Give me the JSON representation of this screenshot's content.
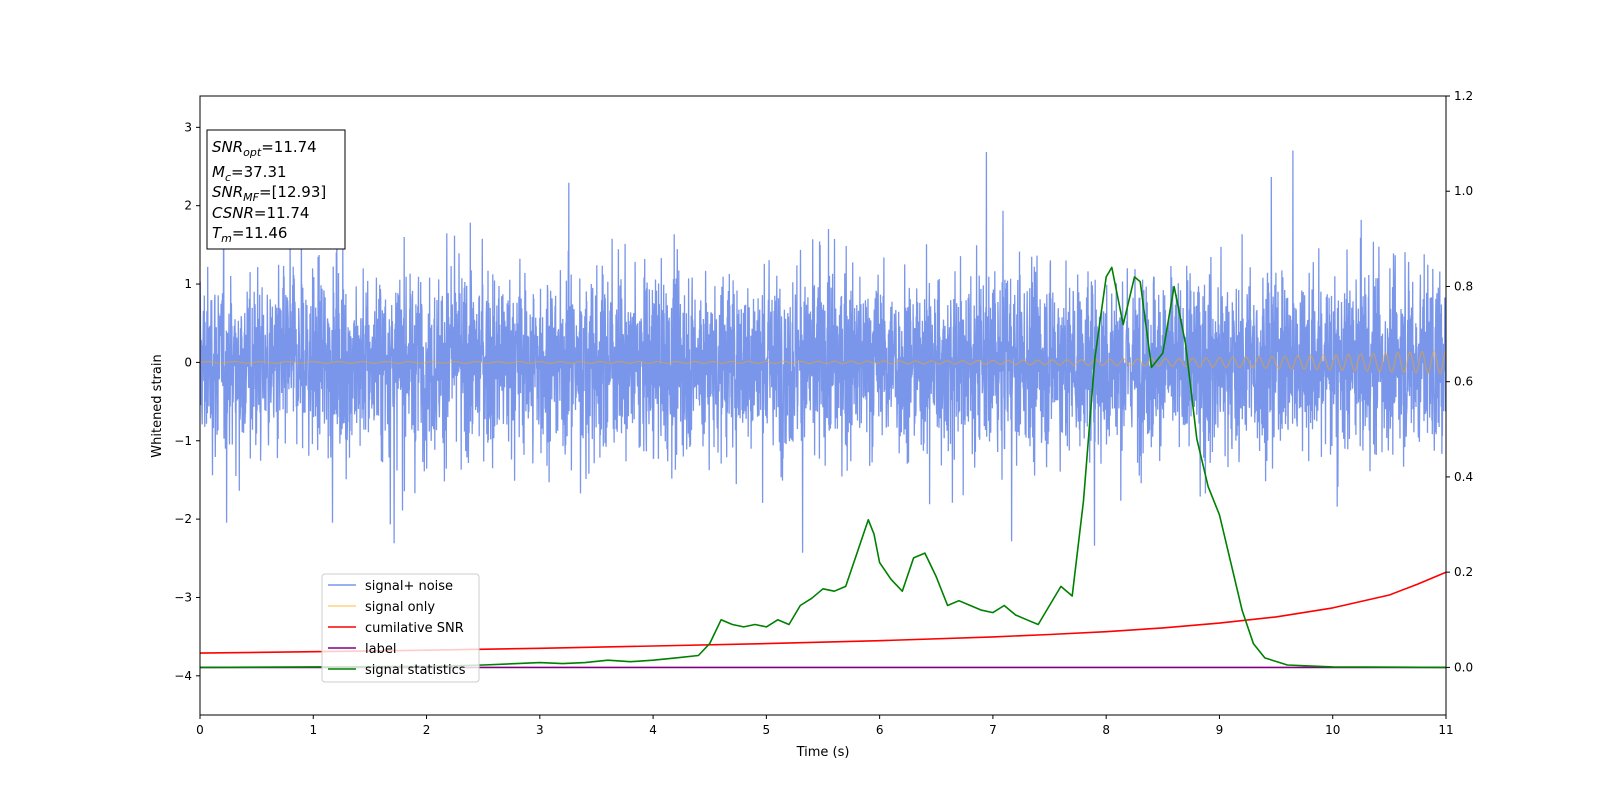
{
  "chart_data": {
    "type": "line",
    "xlabel": "Time (s)",
    "ylabel": "Whitened strain",
    "xlim": [
      0,
      11
    ],
    "ylim": [
      -4.5,
      3.4
    ],
    "y2lim": [
      -0.1,
      1.2
    ],
    "x_ticks": [
      "0",
      "1",
      "2",
      "3",
      "4",
      "5",
      "6",
      "7",
      "8",
      "9",
      "10",
      "11"
    ],
    "y_ticks": [
      "−4",
      "−3",
      "−2",
      "−1",
      "0",
      "1",
      "2",
      "3"
    ],
    "y2_ticks": [
      "0.0",
      "0.2",
      "0.4",
      "0.6",
      "0.8",
      "1.0",
      "1.2"
    ],
    "legend_position": "lower-left",
    "annotation": [
      {
        "sym": "SNR",
        "sub": "opt",
        "val": "=11.74"
      },
      {
        "sym": "M",
        "sub": "c",
        "val": "=37.31"
      },
      {
        "sym": "SNR",
        "sub": "MF",
        "val": "=[12.93]"
      },
      {
        "sym": "CSNR",
        "sub": "",
        "val": "=11.74"
      },
      {
        "sym": "T",
        "sub": "m",
        "val": "=11.46"
      }
    ],
    "series": [
      {
        "name": "signal+ noise",
        "color": "#4169e1",
        "axis": "left",
        "noise_band": {
          "typical_min": -1.6,
          "typical_max": 1.5,
          "extreme_min": -3.3,
          "extreme_max": 3.05
        }
      },
      {
        "name": "signal only",
        "color": "#ffa500",
        "axis": "left",
        "chirp": {
          "amplitude_start": 0.01,
          "amplitude_end": 0.15
        }
      },
      {
        "name": "cumilative SNR",
        "color": "#ff0000",
        "axis": "right",
        "x": [
          0,
          1,
          2,
          3,
          4,
          5,
          6,
          7,
          7.5,
          8,
          8.5,
          9,
          9.5,
          10,
          10.5,
          10.75,
          11
        ],
        "y": [
          0.03,
          0.033,
          0.036,
          0.04,
          0.045,
          0.05,
          0.056,
          0.064,
          0.069,
          0.075,
          0.083,
          0.093,
          0.106,
          0.125,
          0.152,
          0.175,
          0.2
        ]
      },
      {
        "name": "label",
        "color": "#800080",
        "axis": "right",
        "x": [
          0,
          11
        ],
        "y": [
          0,
          0
        ]
      },
      {
        "name": "signal statistics",
        "color": "#008000",
        "axis": "right",
        "x": [
          0,
          1,
          2,
          2.5,
          3,
          3.2,
          3.4,
          3.6,
          3.8,
          4,
          4.2,
          4.4,
          4.5,
          4.6,
          4.7,
          4.8,
          4.9,
          5,
          5.1,
          5.2,
          5.3,
          5.4,
          5.5,
          5.6,
          5.7,
          5.8,
          5.9,
          5.95,
          6,
          6.1,
          6.2,
          6.3,
          6.4,
          6.5,
          6.6,
          6.7,
          6.8,
          6.9,
          7,
          7.1,
          7.2,
          7.3,
          7.4,
          7.5,
          7.6,
          7.7,
          7.8,
          7.9,
          8,
          8.05,
          8.15,
          8.25,
          8.3,
          8.4,
          8.5,
          8.6,
          8.7,
          8.8,
          8.9,
          9,
          9.1,
          9.2,
          9.3,
          9.4,
          9.6,
          10,
          11
        ],
        "y": [
          0,
          0.001,
          0.002,
          0.005,
          0.01,
          0.008,
          0.01,
          0.015,
          0.012,
          0.015,
          0.02,
          0.025,
          0.05,
          0.1,
          0.09,
          0.085,
          0.09,
          0.085,
          0.1,
          0.09,
          0.13,
          0.145,
          0.165,
          0.16,
          0.17,
          0.24,
          0.31,
          0.28,
          0.22,
          0.185,
          0.16,
          0.23,
          0.24,
          0.19,
          0.13,
          0.14,
          0.13,
          0.12,
          0.115,
          0.13,
          0.11,
          0.1,
          0.09,
          0.13,
          0.17,
          0.15,
          0.35,
          0.65,
          0.82,
          0.84,
          0.72,
          0.82,
          0.81,
          0.63,
          0.66,
          0.8,
          0.68,
          0.48,
          0.38,
          0.32,
          0.22,
          0.12,
          0.05,
          0.02,
          0.005,
          0.001,
          0
        ]
      }
    ]
  }
}
